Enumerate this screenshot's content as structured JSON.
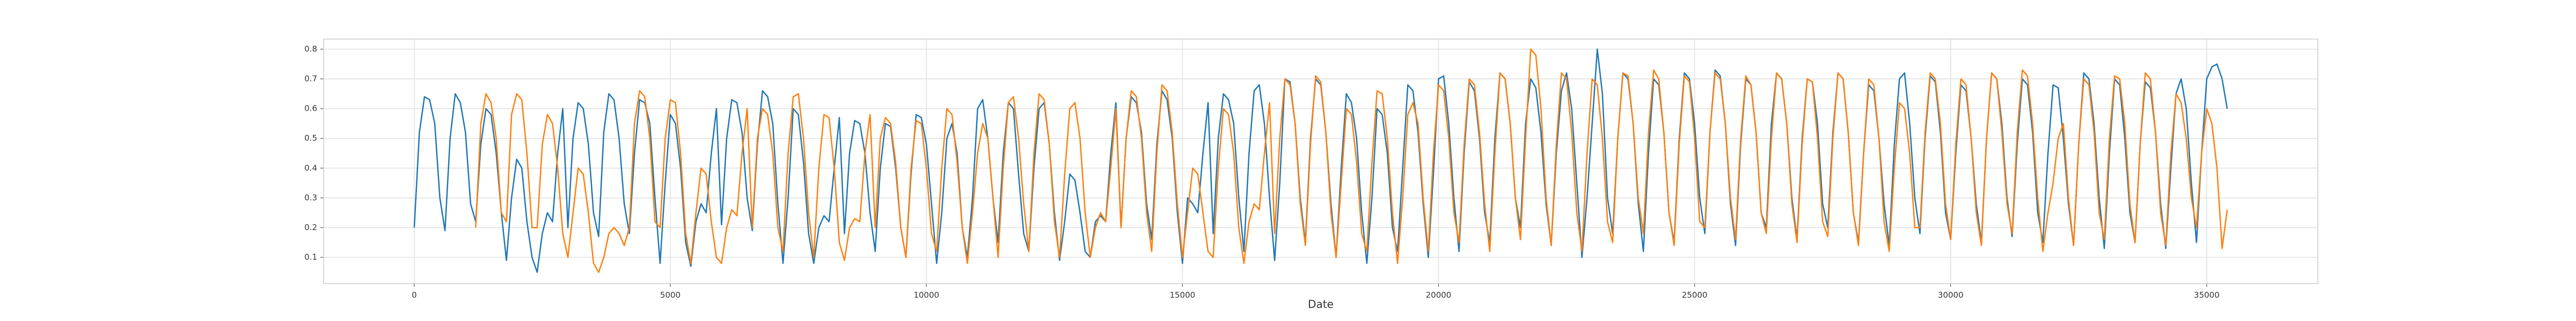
{
  "chart_data": {
    "type": "line",
    "x_label": "Date",
    "x": [
      0,
      100,
      200,
      300,
      400,
      500,
      600,
      700,
      800,
      900,
      1000,
      1100,
      1200,
      1300,
      1400,
      1500,
      1600,
      1700,
      1800,
      1900,
      2000,
      2100,
      2200,
      2300,
      2400,
      2500,
      2600,
      2700,
      2800,
      2900,
      3000,
      3100,
      3200,
      3300,
      3400,
      3500,
      3600,
      3700,
      3800,
      3900,
      4000,
      4100,
      4200,
      4300,
      4400,
      4500,
      4600,
      4700,
      4800,
      4900,
      5000,
      5100,
      5200,
      5300,
      5400,
      5500,
      5600,
      5700,
      5800,
      5900,
      6000,
      6100,
      6200,
      6300,
      6400,
      6500,
      6600,
      6700,
      6800,
      6900,
      7000,
      7100,
      7200,
      7300,
      7400,
      7500,
      7600,
      7700,
      7800,
      7900,
      8000,
      8100,
      8200,
      8300,
      8400,
      8500,
      8600,
      8700,
      8800,
      8900,
      9000,
      9100,
      9200,
      9300,
      9400,
      9500,
      9600,
      9700,
      9800,
      9900,
      10000,
      10100,
      10200,
      10300,
      10400,
      10500,
      10600,
      10700,
      10800,
      10900,
      11000,
      11100,
      11200,
      11300,
      11400,
      11500,
      11600,
      11700,
      11800,
      11900,
      12000,
      12100,
      12200,
      12300,
      12400,
      12500,
      12600,
      12700,
      12800,
      12900,
      13000,
      13100,
      13200,
      13300,
      13400,
      13500,
      13600,
      13700,
      13800,
      13900,
      14000,
      14100,
      14200,
      14300,
      14400,
      14500,
      14600,
      14700,
      14800,
      14900,
      15000,
      15100,
      15200,
      15300,
      15400,
      15500,
      15600,
      15700,
      15800,
      15900,
      16000,
      16100,
      16200,
      16300,
      16400,
      16500,
      16600,
      16700,
      16800,
      16900,
      17000,
      17100,
      17200,
      17300,
      17400,
      17500,
      17600,
      17700,
      17800,
      17900,
      18000,
      18100,
      18200,
      18300,
      18400,
      18500,
      18600,
      18700,
      18800,
      18900,
      19000,
      19100,
      19200,
      19300,
      19400,
      19500,
      19600,
      19700,
      19800,
      19900,
      20000,
      20100,
      20200,
      20300,
      20400,
      20500,
      20600,
      20700,
      20800,
      20900,
      21000,
      21100,
      21200,
      21300,
      21400,
      21500,
      21600,
      21700,
      21800,
      21900,
      22000,
      22100,
      22200,
      22300,
      22400,
      22500,
      22600,
      22700,
      22800,
      22900,
      23000,
      23100,
      23200,
      23300,
      23400,
      23500,
      23600,
      23700,
      23800,
      23900,
      24000,
      24100,
      24200,
      24300,
      24400,
      24500,
      24600,
      24700,
      24800,
      24900,
      25000,
      25100,
      25200,
      25300,
      25400,
      25500,
      25600,
      25700,
      25800,
      25900,
      26000,
      26100,
      26200,
      26300,
      26400,
      26500,
      26600,
      26700,
      26800,
      26900,
      27000,
      27100,
      27200,
      27300,
      27400,
      27500,
      27600,
      27700,
      27800,
      27900,
      28000,
      28100,
      28200,
      28300,
      28400,
      28500,
      28600,
      28700,
      28800,
      28900,
      29000,
      29100,
      29200,
      29300,
      29400,
      29500,
      29600,
      29700,
      29800,
      29900,
      30000,
      30100,
      30200,
      30300,
      30400,
      30500,
      30600,
      30700,
      30800,
      30900,
      31000,
      31100,
      31200,
      31300,
      31400,
      31500,
      31600,
      31700,
      31800,
      31900,
      32000,
      32100,
      32200,
      32300,
      32400,
      32500,
      32600,
      32700,
      32800,
      32900,
      33000,
      33100,
      33200,
      33300,
      33400,
      33500,
      33600,
      33700,
      33800,
      33900,
      34000,
      34100,
      34200,
      34300,
      34400,
      34500,
      34600,
      34700,
      34800,
      34900,
      35000,
      35100,
      35200,
      35300,
      35400
    ],
    "series": [
      {
        "color": "#1f77b4",
        "values": [
          0.2,
          0.52,
          0.64,
          0.63,
          0.55,
          0.3,
          0.19,
          0.5,
          0.65,
          0.62,
          0.52,
          0.28,
          0.22,
          0.48,
          0.6,
          0.58,
          0.45,
          0.25,
          0.09,
          0.3,
          0.43,
          0.4,
          0.22,
          0.1,
          0.05,
          0.18,
          0.25,
          0.22,
          0.45,
          0.6,
          0.2,
          0.5,
          0.62,
          0.6,
          0.48,
          0.25,
          0.17,
          0.52,
          0.65,
          0.63,
          0.5,
          0.28,
          0.18,
          0.45,
          0.63,
          0.62,
          0.55,
          0.3,
          0.08,
          0.35,
          0.58,
          0.55,
          0.4,
          0.15,
          0.07,
          0.22,
          0.28,
          0.25,
          0.45,
          0.6,
          0.21,
          0.5,
          0.63,
          0.62,
          0.52,
          0.3,
          0.19,
          0.48,
          0.66,
          0.64,
          0.55,
          0.28,
          0.08,
          0.3,
          0.6,
          0.58,
          0.42,
          0.18,
          0.08,
          0.2,
          0.24,
          0.22,
          0.4,
          0.57,
          0.18,
          0.45,
          0.56,
          0.55,
          0.45,
          0.25,
          0.12,
          0.4,
          0.55,
          0.54,
          0.4,
          0.2,
          0.1,
          0.38,
          0.58,
          0.57,
          0.48,
          0.28,
          0.08,
          0.25,
          0.5,
          0.55,
          0.45,
          0.2,
          0.1,
          0.3,
          0.6,
          0.63,
          0.5,
          0.3,
          0.15,
          0.45,
          0.62,
          0.6,
          0.38,
          0.18,
          0.12,
          0.4,
          0.6,
          0.62,
          0.48,
          0.25,
          0.09,
          0.22,
          0.38,
          0.36,
          0.25,
          0.12,
          0.1,
          0.22,
          0.24,
          0.22,
          0.45,
          0.62,
          0.2,
          0.5,
          0.64,
          0.62,
          0.52,
          0.28,
          0.16,
          0.48,
          0.66,
          0.63,
          0.5,
          0.25,
          0.08,
          0.3,
          0.28,
          0.25,
          0.45,
          0.62,
          0.18,
          0.5,
          0.65,
          0.63,
          0.55,
          0.3,
          0.12,
          0.45,
          0.66,
          0.68,
          0.55,
          0.3,
          0.09,
          0.35,
          0.7,
          0.69,
          0.55,
          0.3,
          0.15,
          0.5,
          0.7,
          0.68,
          0.52,
          0.28,
          0.1,
          0.4,
          0.65,
          0.62,
          0.5,
          0.25,
          0.08,
          0.3,
          0.6,
          0.58,
          0.45,
          0.2,
          0.12,
          0.4,
          0.68,
          0.66,
          0.52,
          0.28,
          0.1,
          0.38,
          0.7,
          0.71,
          0.55,
          0.3,
          0.12,
          0.45,
          0.69,
          0.66,
          0.5,
          0.25,
          0.15,
          0.5,
          0.72,
          0.7,
          0.55,
          0.3,
          0.2,
          0.55,
          0.7,
          0.67,
          0.52,
          0.28,
          0.14,
          0.45,
          0.66,
          0.72,
          0.6,
          0.35,
          0.1,
          0.3,
          0.55,
          0.8,
          0.65,
          0.3,
          0.18,
          0.5,
          0.72,
          0.7,
          0.55,
          0.28,
          0.12,
          0.45,
          0.7,
          0.68,
          0.52,
          0.25,
          0.15,
          0.5,
          0.72,
          0.7,
          0.55,
          0.3,
          0.18,
          0.52,
          0.73,
          0.71,
          0.55,
          0.28,
          0.14,
          0.48,
          0.7,
          0.68,
          0.52,
          0.25,
          0.2,
          0.55,
          0.72,
          0.7,
          0.55,
          0.3,
          0.16,
          0.5,
          0.7,
          0.69,
          0.55,
          0.28,
          0.2,
          0.52,
          0.72,
          0.7,
          0.52,
          0.25,
          0.15,
          0.45,
          0.68,
          0.66,
          0.5,
          0.28,
          0.14,
          0.48,
          0.7,
          0.72,
          0.55,
          0.3,
          0.18,
          0.5,
          0.71,
          0.69,
          0.52,
          0.25,
          0.16,
          0.45,
          0.68,
          0.66,
          0.5,
          0.28,
          0.15,
          0.5,
          0.72,
          0.7,
          0.55,
          0.3,
          0.17,
          0.48,
          0.7,
          0.68,
          0.52,
          0.25,
          0.15,
          0.45,
          0.68,
          0.67,
          0.5,
          0.28,
          0.14,
          0.48,
          0.72,
          0.7,
          0.55,
          0.3,
          0.13,
          0.45,
          0.7,
          0.68,
          0.5,
          0.25,
          0.15,
          0.48,
          0.69,
          0.67,
          0.52,
          0.28,
          0.13,
          0.4,
          0.65,
          0.7,
          0.6,
          0.35,
          0.15,
          0.45,
          0.7,
          0.74,
          0.75,
          0.7,
          0.6
        ]
      },
      {
        "color": "#ff7f0e",
        "values": [
          null,
          null,
          null,
          null,
          null,
          null,
          null,
          null,
          null,
          null,
          null,
          null,
          0.2,
          0.55,
          0.65,
          0.62,
          0.5,
          0.25,
          0.22,
          0.58,
          0.65,
          0.63,
          0.45,
          0.2,
          0.2,
          0.48,
          0.58,
          0.55,
          0.4,
          0.18,
          0.1,
          0.25,
          0.4,
          0.38,
          0.25,
          0.08,
          0.05,
          0.1,
          0.18,
          0.2,
          0.18,
          0.14,
          0.2,
          0.55,
          0.66,
          0.64,
          0.5,
          0.22,
          0.2,
          0.5,
          0.63,
          0.62,
          0.45,
          0.18,
          0.08,
          0.25,
          0.4,
          0.38,
          0.22,
          0.1,
          0.08,
          0.2,
          0.26,
          0.24,
          0.45,
          0.6,
          0.2,
          0.5,
          0.6,
          0.58,
          0.45,
          0.2,
          0.12,
          0.45,
          0.64,
          0.65,
          0.5,
          0.25,
          0.1,
          0.4,
          0.58,
          0.57,
          0.4,
          0.15,
          0.09,
          0.2,
          0.23,
          0.22,
          0.45,
          0.58,
          0.2,
          0.5,
          0.57,
          0.55,
          0.42,
          0.2,
          0.1,
          0.4,
          0.56,
          0.55,
          0.4,
          0.18,
          0.12,
          0.4,
          0.6,
          0.58,
          0.42,
          0.2,
          0.08,
          0.25,
          0.45,
          0.55,
          0.5,
          0.3,
          0.1,
          0.4,
          0.62,
          0.64,
          0.5,
          0.28,
          0.12,
          0.45,
          0.65,
          0.63,
          0.48,
          0.22,
          0.1,
          0.38,
          0.6,
          0.62,
          0.5,
          0.25,
          0.1,
          0.2,
          0.25,
          0.22,
          0.4,
          0.6,
          0.2,
          0.5,
          0.66,
          0.64,
          0.5,
          0.25,
          0.12,
          0.45,
          0.68,
          0.66,
          0.52,
          0.28,
          0.1,
          0.25,
          0.4,
          0.38,
          0.25,
          0.12,
          0.1,
          0.4,
          0.6,
          0.58,
          0.45,
          0.2,
          0.08,
          0.22,
          0.28,
          0.26,
          0.45,
          0.62,
          0.18,
          0.5,
          0.7,
          0.68,
          0.55,
          0.28,
          0.14,
          0.48,
          0.71,
          0.69,
          0.52,
          0.25,
          0.1,
          0.35,
          0.6,
          0.58,
          0.42,
          0.18,
          0.12,
          0.42,
          0.66,
          0.65,
          0.5,
          0.25,
          0.08,
          0.3,
          0.58,
          0.62,
          0.55,
          0.3,
          0.12,
          0.45,
          0.68,
          0.66,
          0.5,
          0.25,
          0.15,
          0.48,
          0.7,
          0.68,
          0.52,
          0.28,
          0.12,
          0.45,
          0.72,
          0.7,
          0.55,
          0.3,
          0.16,
          0.5,
          0.8,
          0.78,
          0.6,
          0.3,
          0.14,
          0.48,
          0.72,
          0.7,
          0.52,
          0.25,
          0.12,
          0.45,
          0.7,
          0.68,
          0.5,
          0.22,
          0.15,
          0.5,
          0.72,
          0.71,
          0.55,
          0.3,
          0.18,
          0.52,
          0.73,
          0.7,
          0.52,
          0.25,
          0.14,
          0.48,
          0.71,
          0.69,
          0.5,
          0.22,
          0.2,
          0.52,
          0.72,
          0.7,
          0.55,
          0.3,
          0.16,
          0.5,
          0.71,
          0.68,
          0.52,
          0.25,
          0.18,
          0.5,
          0.72,
          0.7,
          0.55,
          0.28,
          0.15,
          0.48,
          0.7,
          0.69,
          0.5,
          0.22,
          0.17,
          0.5,
          0.72,
          0.7,
          0.52,
          0.25,
          0.14,
          0.45,
          0.7,
          0.68,
          0.5,
          0.22,
          0.12,
          0.4,
          0.62,
          0.6,
          0.45,
          0.2,
          0.2,
          0.52,
          0.72,
          0.7,
          0.55,
          0.28,
          0.16,
          0.48,
          0.7,
          0.68,
          0.5,
          0.25,
          0.14,
          0.5,
          0.72,
          0.7,
          0.52,
          0.28,
          0.18,
          0.52,
          0.73,
          0.71,
          0.55,
          0.3,
          0.12,
          0.25,
          0.35,
          0.5,
          0.55,
          0.3,
          0.14,
          0.48,
          0.7,
          0.68,
          0.52,
          0.25,
          0.16,
          0.5,
          0.71,
          0.7,
          0.55,
          0.28,
          0.15,
          0.48,
          0.72,
          0.7,
          0.52,
          0.25,
          0.14,
          0.45,
          0.65,
          0.62,
          0.5,
          0.3,
          0.2,
          0.45,
          0.6,
          0.55,
          0.4,
          0.13,
          0.26
        ]
      }
    ],
    "xlim": [
      -1770,
      37170
    ],
    "ylim": [
      0.012,
      0.834
    ],
    "xticks": [
      0,
      5000,
      10000,
      15000,
      20000,
      25000,
      30000,
      35000
    ],
    "yticks": [
      0.1,
      0.2,
      0.3,
      0.4,
      0.5,
      0.6,
      0.7,
      0.8
    ],
    "grid": true
  }
}
